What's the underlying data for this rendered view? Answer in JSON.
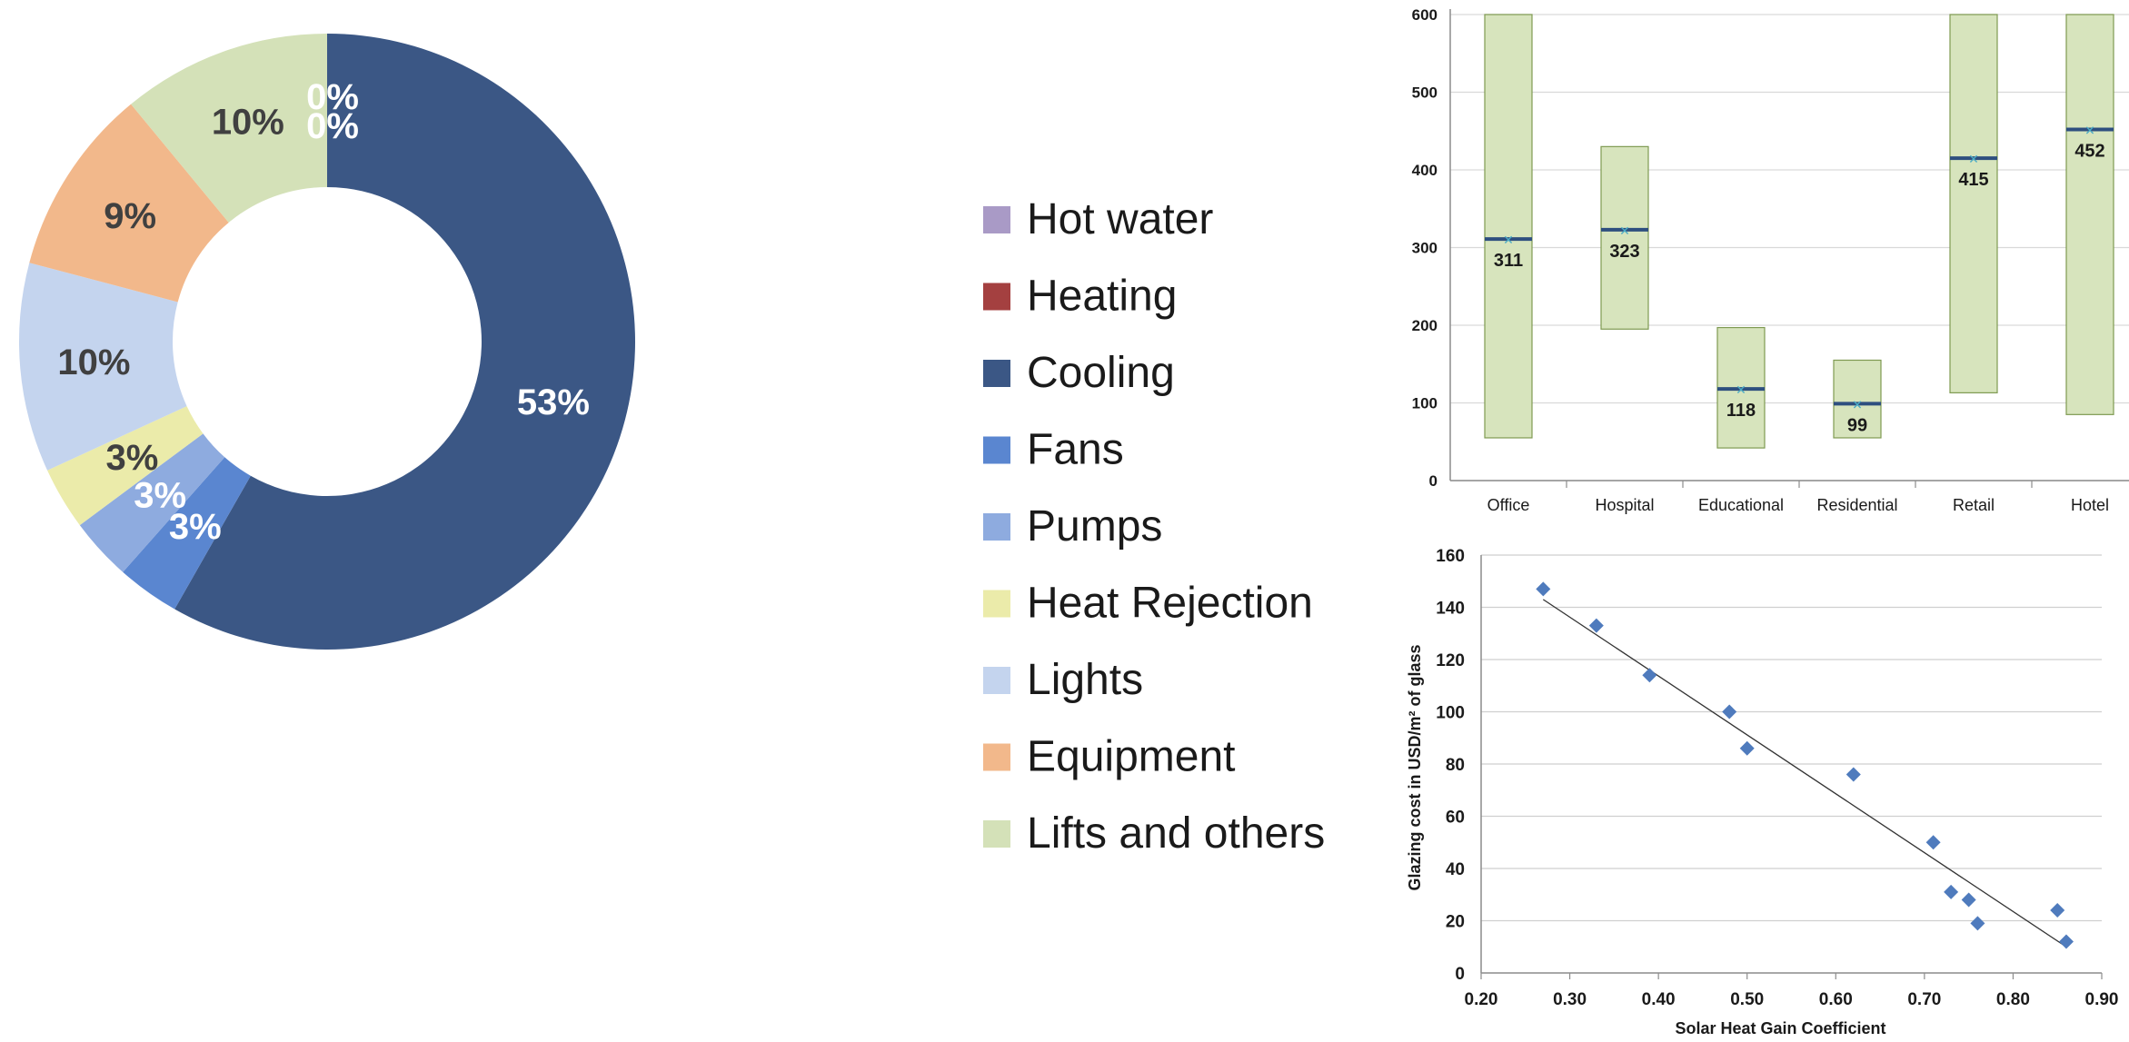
{
  "chart_data": [
    {
      "type": "donut",
      "labels": [
        "Hot water",
        "Heating",
        "Cooling",
        "Fans",
        "Pumps",
        "Heat Rejection",
        "Lights",
        "Equipment",
        "Lifts and others"
      ],
      "values": [
        0,
        0,
        53,
        3,
        3,
        3,
        10,
        9,
        10
      ],
      "value_labels": [
        "0%",
        "0%",
        "53%",
        "3%",
        "3%",
        "3%",
        "10%",
        "9%",
        "10%"
      ],
      "colors": [
        "#a99ac6",
        "#a44040",
        "#3b5785",
        "#5a86d0",
        "#8eabdf",
        "#ebebaa",
        "#c4d4ee",
        "#f2b88b",
        "#d4e1b8"
      ],
      "label_colors": [
        "#ffffff",
        "#ffffff",
        "#ffffff",
        "#ffffff",
        "#ffffff",
        "#404040",
        "#404040",
        "#404040",
        "#404040"
      ],
      "legend_position": "right"
    },
    {
      "type": "floating-bar",
      "categories": [
        "Office",
        "Hospital",
        "Educational",
        "Residential",
        "Retail",
        "Hotel"
      ],
      "low": [
        55,
        195,
        42,
        55,
        113,
        85
      ],
      "high": [
        600,
        430,
        197,
        155,
        600,
        600
      ],
      "average": [
        311,
        323,
        118,
        99,
        415,
        452
      ],
      "average_labels": [
        "311",
        "323",
        "118",
        "99",
        "415",
        "452"
      ],
      "ylim": [
        0,
        600
      ],
      "yticks": [
        0,
        100,
        200,
        300,
        400,
        500,
        600
      ],
      "ytick_labels": [
        "0",
        "100",
        "200",
        "300",
        "400",
        "500",
        "600"
      ],
      "grid": true,
      "bar_color": "#d7e4bd",
      "bar_edge_color": "#7f9a52",
      "avg_color": "#2e4f7f",
      "marker_color": "#4bacc6"
    },
    {
      "type": "scatter",
      "xlabel": "Solar Heat Gain Coefficient",
      "ylabel": "Glazing cost in USD/m² of glass",
      "xlim": [
        0.2,
        0.9
      ],
      "ylim": [
        0,
        160
      ],
      "xticks": [
        0.2,
        0.3,
        0.4,
        0.5,
        0.6,
        0.7,
        0.8,
        0.9
      ],
      "xtick_labels": [
        "0.20",
        "0.30",
        "0.40",
        "0.50",
        "0.60",
        "0.70",
        "0.80",
        "0.90"
      ],
      "yticks": [
        0,
        20,
        40,
        60,
        80,
        100,
        120,
        140,
        160
      ],
      "ytick_labels": [
        "0",
        "20",
        "40",
        "60",
        "80",
        "100",
        "120",
        "140",
        "160"
      ],
      "points": [
        {
          "x": 0.27,
          "y": 147
        },
        {
          "x": 0.33,
          "y": 133
        },
        {
          "x": 0.39,
          "y": 114
        },
        {
          "x": 0.48,
          "y": 100
        },
        {
          "x": 0.5,
          "y": 86
        },
        {
          "x": 0.62,
          "y": 76
        },
        {
          "x": 0.71,
          "y": 50
        },
        {
          "x": 0.73,
          "y": 31
        },
        {
          "x": 0.75,
          "y": 28
        },
        {
          "x": 0.76,
          "y": 19
        },
        {
          "x": 0.85,
          "y": 24
        },
        {
          "x": 0.86,
          "y": 12
        }
      ],
      "trendline": {
        "x": [
          0.27,
          0.86
        ],
        "y": [
          143,
          10
        ]
      },
      "grid": true,
      "marker_color": "#4f7bbd"
    }
  ]
}
